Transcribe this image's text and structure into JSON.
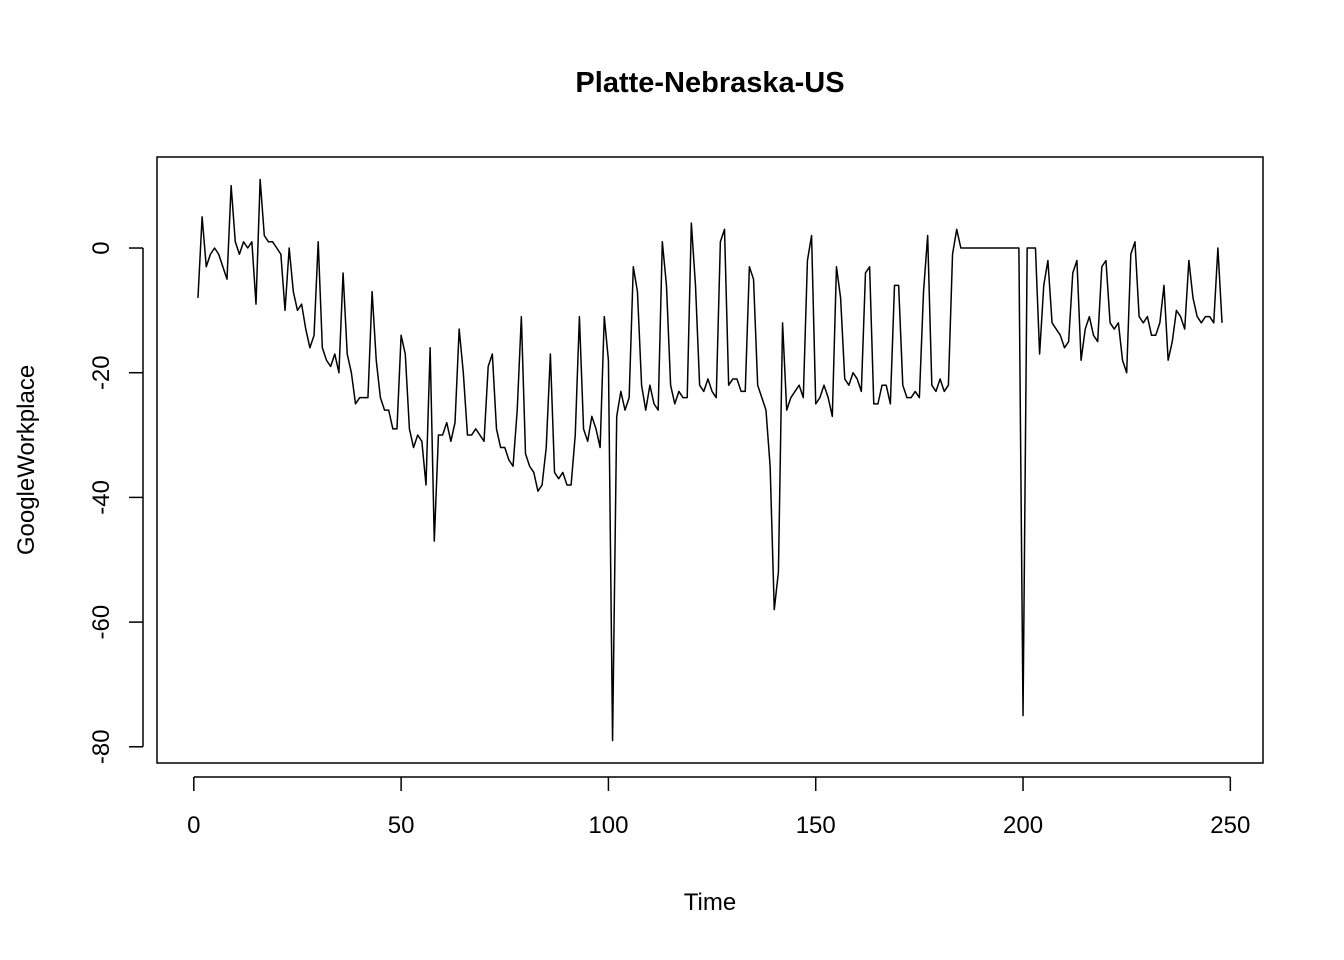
{
  "chart_data": {
    "type": "line",
    "title": "Platte-Nebraska-US",
    "xlabel": "Time",
    "ylabel": "GoogleWorkplace",
    "color": "#000000",
    "xlim": [
      -8.88,
      257.88
    ],
    "ylim": [
      -82.6,
      14.6
    ],
    "xticks": [
      0,
      50,
      100,
      150,
      200,
      250
    ],
    "yticks": [
      -80,
      -60,
      -40,
      -20,
      0
    ],
    "x": [
      1,
      2,
      3,
      4,
      5,
      6,
      7,
      8,
      9,
      10,
      11,
      12,
      13,
      14,
      15,
      16,
      17,
      18,
      19,
      20,
      21,
      22,
      23,
      24,
      25,
      26,
      27,
      28,
      29,
      30,
      31,
      32,
      33,
      34,
      35,
      36,
      37,
      38,
      39,
      40,
      41,
      42,
      43,
      44,
      45,
      46,
      47,
      48,
      49,
      50,
      51,
      52,
      53,
      54,
      55,
      56,
      57,
      58,
      59,
      60,
      61,
      62,
      63,
      64,
      65,
      66,
      67,
      68,
      69,
      70,
      71,
      72,
      73,
      74,
      75,
      76,
      77,
      78,
      79,
      80,
      81,
      82,
      83,
      84,
      85,
      86,
      87,
      88,
      89,
      90,
      91,
      92,
      93,
      94,
      95,
      96,
      97,
      98,
      99,
      100,
      101,
      102,
      103,
      104,
      105,
      106,
      107,
      108,
      109,
      110,
      111,
      112,
      113,
      114,
      115,
      116,
      117,
      118,
      119,
      120,
      121,
      122,
      123,
      124,
      125,
      126,
      127,
      128,
      129,
      130,
      131,
      132,
      133,
      134,
      135,
      136,
      137,
      138,
      139,
      140,
      141,
      142,
      143,
      144,
      145,
      146,
      147,
      148,
      149,
      150,
      151,
      152,
      153,
      154,
      155,
      156,
      157,
      158,
      159,
      160,
      161,
      162,
      163,
      164,
      165,
      166,
      167,
      168,
      169,
      170,
      171,
      172,
      173,
      174,
      175,
      176,
      177,
      178,
      179,
      180,
      181,
      182,
      183,
      184,
      185,
      186,
      187,
      188,
      189,
      190,
      191,
      192,
      193,
      194,
      195,
      196,
      197,
      198,
      199,
      200,
      201,
      202,
      203,
      204,
      205,
      206,
      207,
      208,
      209,
      210,
      211,
      212,
      213,
      214,
      215,
      216,
      217,
      218,
      219,
      220,
      221,
      222,
      223,
      224,
      225,
      226,
      227,
      228,
      229,
      230,
      231,
      232,
      233,
      234,
      235,
      236,
      237,
      238,
      239,
      240,
      241,
      242,
      243,
      244,
      245,
      246,
      247,
      248
    ],
    "values": [
      -8,
      5,
      -3,
      -1,
      0,
      -1,
      -3,
      -5,
      10,
      1,
      -1,
      1,
      0,
      1,
      -9,
      11,
      2,
      1,
      1,
      0,
      -1,
      -10,
      0,
      -7,
      -10,
      -9,
      -13,
      -16,
      -14,
      1,
      -16,
      -18,
      -19,
      -17,
      -20,
      -4,
      -17,
      -20,
      -25,
      -24,
      -24,
      -24,
      -7,
      -18,
      -24,
      -26,
      -26,
      -29,
      -29,
      -14,
      -17,
      -29,
      -32,
      -30,
      -31,
      -38,
      -16,
      -47,
      -30,
      -30,
      -28,
      -31,
      -28,
      -13,
      -20,
      -30,
      -30,
      -29,
      -30,
      -31,
      -19,
      -17,
      -29,
      -32,
      -32,
      -34,
      -35,
      -26,
      -11,
      -33,
      -35,
      -36,
      -39,
      -38,
      -32,
      -17,
      -36,
      -37,
      -36,
      -38,
      -38,
      -30,
      -11,
      -29,
      -31,
      -27,
      -29,
      -32,
      -11,
      -18,
      -79,
      -27,
      -23,
      -26,
      -24,
      -3,
      -7,
      -22,
      -26,
      -22,
      -25,
      -26,
      1,
      -6,
      -22,
      -25,
      -23,
      -24,
      -24,
      4,
      -6,
      -22,
      -23,
      -21,
      -23,
      -24,
      1,
      3,
      -22,
      -21,
      -21,
      -23,
      -23,
      -3,
      -5,
      -22,
      -24,
      -26,
      -35,
      -58,
      -52,
      -12,
      -26,
      -24,
      -23,
      -22,
      -24,
      -2,
      2,
      -25,
      -24,
      -22,
      -24,
      -27,
      -3,
      -8,
      -21,
      -22,
      -20,
      -21,
      -23,
      -4,
      -3,
      -25,
      -25,
      -22,
      -22,
      -25,
      -6,
      -6,
      -22,
      -24,
      -24,
      -23,
      -24,
      -7,
      2,
      -22,
      -23,
      -21,
      -23,
      -22,
      -1,
      3,
      0,
      0,
      0,
      0,
      0,
      0,
      0,
      0,
      0,
      0,
      0,
      0,
      0,
      0,
      0,
      -75,
      0,
      0,
      0,
      -17,
      -6,
      -2,
      -12,
      -13,
      -14,
      -16,
      -15,
      -4,
      -2,
      -18,
      -13,
      -11,
      -14,
      -15,
      -3,
      -2,
      -12,
      -13,
      -12,
      -18,
      -20,
      -1,
      1,
      -11,
      -12,
      -11,
      -14,
      -14,
      -12,
      -6,
      -18,
      -15,
      -10,
      -11,
      -13,
      -2,
      -8,
      -11,
      -12,
      -11,
      -11,
      -12,
      0,
      -12
    ]
  }
}
